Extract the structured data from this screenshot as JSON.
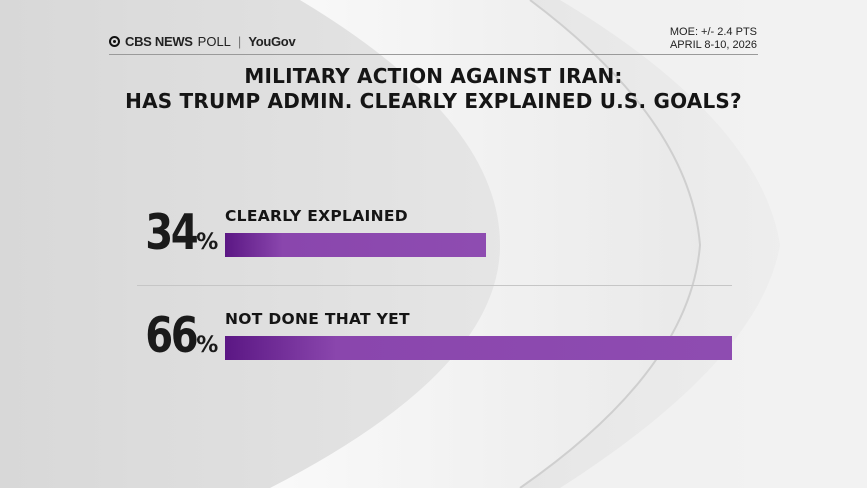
{
  "header": {
    "brand": "CBS NEWS",
    "poll": "POLL",
    "partner": "YouGov",
    "moe": "MOE: +/- 2.4 PTS",
    "dates": "APRIL 8-10, 2026"
  },
  "chart_data": {
    "type": "bar",
    "orientation": "horizontal",
    "title_line1": "MILITARY ACTION AGAINST IRAN:",
    "title_line2": "HAS TRUMP ADMIN. CLEARLY EXPLAINED U.S. GOALS?",
    "categories": [
      "CLEARLY EXPLAINED",
      "NOT DONE THAT YET"
    ],
    "values": [
      34,
      66
    ],
    "display": [
      {
        "num": "34",
        "sym": "%"
      },
      {
        "num": "66",
        "sym": "%"
      }
    ],
    "unit": "%",
    "xlim": [
      0,
      66
    ],
    "bar_color": "#8e4cb1",
    "bar_color_start": "#5b1784"
  }
}
